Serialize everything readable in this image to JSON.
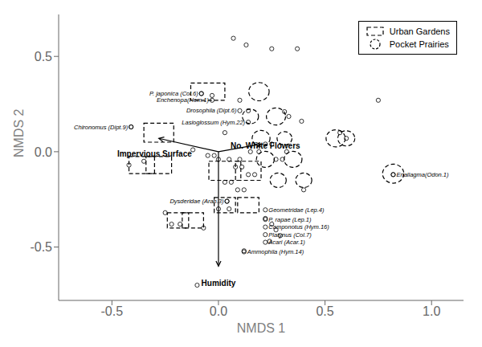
{
  "chart_data": {
    "type": "scatter",
    "xlabel": "NMDS 1",
    "ylabel": "NMDS 2",
    "xlim": [
      -0.75,
      1.15
    ],
    "ylim": [
      -0.78,
      0.72
    ],
    "xticks": [
      -0.5,
      {
        "value": 0,
        "label": "0.0"
      },
      0.5,
      {
        "value": 1,
        "label": "1.0"
      }
    ],
    "yticks": [
      -0.5,
      {
        "value": 0,
        "label": "0.0"
      },
      0.5
    ],
    "color": "#000000",
    "marker": "circle",
    "x": [
      0.07,
      0.13,
      0.25,
      0.37,
      -0.08,
      -0.03,
      0.1,
      0.14,
      -0.41,
      -0.12,
      -0.05,
      -0.02,
      0.0,
      0.05,
      0.08,
      0.11,
      0.14,
      0.17,
      0.03,
      0.06,
      0.09,
      0.12,
      0.0,
      0.05,
      -0.22,
      -0.18,
      -0.25,
      0.15,
      0.19,
      0.22,
      0.25,
      0.27,
      0.3,
      0.32,
      0.1,
      0.04,
      -0.35,
      -0.42,
      0.4,
      0.75,
      0.57,
      0.6,
      0.82,
      0.31,
      0.33,
      -0.07,
      0.39,
      0.03,
      0.22,
      0.25,
      0.27,
      0.29,
      0.24,
      0.12,
      -0.1
    ],
    "values": [
      0.595,
      0.56,
      0.54,
      0.54,
      0.305,
      0.295,
      0.27,
      0.215,
      0.13,
      0.01,
      -0.02,
      -0.02,
      -0.04,
      -0.04,
      -0.08,
      -0.08,
      -0.12,
      -0.12,
      -0.16,
      -0.16,
      -0.2,
      -0.2,
      -0.3,
      -0.3,
      -0.38,
      -0.38,
      -0.32,
      0.0,
      0.0,
      0.04,
      0.04,
      -0.04,
      -0.04,
      0.0,
      -0.04,
      -0.26,
      -0.05,
      -0.07,
      -0.2,
      0.27,
      0.1,
      0.07,
      -0.12,
      0.21,
      0.185,
      -0.4,
      0.16,
      0.1,
      -0.35,
      -0.38,
      -0.41,
      -0.44,
      -0.47,
      -0.52,
      -0.7
    ],
    "labeled_points": [
      {
        "x": -0.08,
        "y": 0.305,
        "label": "P. japonica (Col.6)",
        "align": "right"
      },
      {
        "x": -0.03,
        "y": 0.27,
        "label": "Enchenopa(Hem.1)",
        "align": "right"
      },
      {
        "x": 0.1,
        "y": 0.215,
        "label": "Drosophila (Dipt.6)",
        "align": "right"
      },
      {
        "x": 0.14,
        "y": 0.155,
        "label": "Lasioglossum (Hym.22)",
        "align": "right"
      },
      {
        "x": -0.41,
        "y": 0.13,
        "label": "Chironomus (Dipt.9)",
        "align": "right"
      },
      {
        "x": 0.82,
        "y": -0.12,
        "label": "Enallagma(Odon.1)",
        "align": "left"
      },
      {
        "x": 0.22,
        "y": -0.305,
        "label": "Geometridae (Lep.4)",
        "align": "left"
      },
      {
        "x": 0.22,
        "y": -0.355,
        "label": "P. rapae (Lep.1)",
        "align": "left"
      },
      {
        "x": 0.22,
        "y": -0.395,
        "label": "Camponotus (Hym.16)",
        "align": "left"
      },
      {
        "x": 0.22,
        "y": -0.435,
        "label": "Platynus (Col.7)",
        "align": "left"
      },
      {
        "x": 0.22,
        "y": -0.475,
        "label": "Acari (Acar.1)",
        "align": "left"
      },
      {
        "x": 0.12,
        "y": -0.525,
        "label": "Ammophila (Hym.14)",
        "align": "left"
      },
      {
        "x": 0.04,
        "y": -0.26,
        "label": "Dysderidae (Aran.3)",
        "align": "right"
      }
    ],
    "arrows": [
      {
        "x0": 0.0,
        "y0": 0.0,
        "x1": -0.28,
        "y1": 0.07,
        "label": "Impervious Surface",
        "label_x": -0.3,
        "label_y": 0.01
      },
      {
        "x0": 0.0,
        "y0": 0.0,
        "x1": 0.2,
        "y1": 0.04,
        "label": "No. White Flowers",
        "label_x": 0.22,
        "label_y": 0.05
      },
      {
        "x0": 0.0,
        "y0": 0.0,
        "x1": 0.0,
        "y1": -0.6,
        "label": "Humidity",
        "label_x": 0.0,
        "label_y": -0.67
      }
    ],
    "series": [
      {
        "name": "Urban Gardens",
        "marker": "square",
        "line_style": "dashed",
        "color": "#000000",
        "boxes": [
          {
            "cx": -0.05,
            "cy": 0.315,
            "w": 0.16,
            "h": 0.09
          },
          {
            "cx": -0.28,
            "cy": 0.1,
            "w": 0.14,
            "h": 0.1
          },
          {
            "cx": -0.36,
            "cy": -0.07,
            "w": 0.12,
            "h": 0.09
          },
          {
            "cx": -0.28,
            "cy": -0.07,
            "w": 0.12,
            "h": 0.09
          },
          {
            "cx": 0.03,
            "cy": -0.1,
            "w": 0.15,
            "h": 0.1
          },
          {
            "cx": 0.14,
            "cy": -0.1,
            "w": 0.12,
            "h": 0.1
          },
          {
            "cx": 0.03,
            "cy": -0.28,
            "w": 0.1,
            "h": 0.08
          },
          {
            "cx": 0.14,
            "cy": -0.28,
            "w": 0.1,
            "h": 0.08
          },
          {
            "cx": -0.19,
            "cy": -0.36,
            "w": 0.1,
            "h": 0.08
          },
          {
            "cx": -0.12,
            "cy": -0.36,
            "w": 0.1,
            "h": 0.08
          }
        ]
      },
      {
        "name": "Pocket Prairies",
        "marker": "circle",
        "line_style": "dashed",
        "color": "#000000",
        "circles": [
          {
            "cx": 0.19,
            "cy": 0.315,
            "r": 0.048
          },
          {
            "cx": 0.15,
            "cy": 0.185,
            "r": 0.038
          },
          {
            "cx": 0.27,
            "cy": 0.185,
            "r": 0.045
          },
          {
            "cx": 0.2,
            "cy": 0.07,
            "r": 0.042
          },
          {
            "cx": 0.31,
            "cy": 0.07,
            "r": 0.035
          },
          {
            "cx": 0.22,
            "cy": -0.04,
            "r": 0.042
          },
          {
            "cx": 0.35,
            "cy": -0.04,
            "r": 0.042
          },
          {
            "cx": 0.28,
            "cy": -0.15,
            "r": 0.038
          },
          {
            "cx": 0.4,
            "cy": -0.15,
            "r": 0.038
          },
          {
            "cx": 0.55,
            "cy": 0.07,
            "r": 0.045
          },
          {
            "cx": 0.6,
            "cy": 0.07,
            "r": 0.04
          },
          {
            "cx": 0.82,
            "cy": -0.115,
            "r": 0.05
          }
        ]
      }
    ],
    "legend": "upper right"
  }
}
